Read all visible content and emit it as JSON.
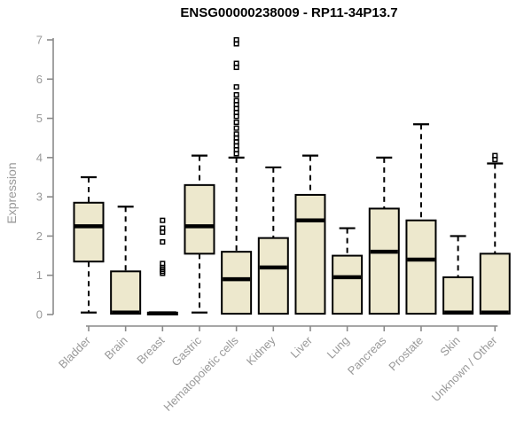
{
  "chart_data": {
    "type": "boxplot",
    "title": "ENSG00000238009 - RP11-34P13.7",
    "ylabel": "Expression",
    "xlabel": "",
    "ylim": [
      0,
      7
    ],
    "yticks": [
      0,
      1,
      2,
      3,
      4,
      5,
      6,
      7
    ],
    "grid": false,
    "legend": "none",
    "categories": [
      "Bladder",
      "Brain",
      "Breast",
      "Gastric",
      "Hematopoietic cells",
      "Kidney",
      "Liver",
      "Lung",
      "Pancreas",
      "Prostate",
      "Skin",
      "Unknown / Other"
    ],
    "series": [
      {
        "category": "Bladder",
        "whisker_low": 0.05,
        "q1": 1.35,
        "median": 2.25,
        "q3": 2.85,
        "whisker_high": 3.5,
        "outliers": []
      },
      {
        "category": "Brain",
        "whisker_low": 0,
        "q1": 0.02,
        "median": 0.05,
        "q3": 1.1,
        "whisker_high": 2.75,
        "outliers": []
      },
      {
        "category": "Breast",
        "whisker_low": 0,
        "q1": 0,
        "median": 0.03,
        "q3": 0.05,
        "whisker_high": 0.05,
        "outliers": [
          1.05,
          1.1,
          1.15,
          1.2,
          1.3,
          1.85,
          2.1,
          2.2,
          2.4
        ]
      },
      {
        "category": "Gastric",
        "whisker_low": 0.05,
        "q1": 1.55,
        "median": 2.25,
        "q3": 3.3,
        "whisker_high": 4.05,
        "outliers": []
      },
      {
        "category": "Hematopoietic cells",
        "whisker_low": 0,
        "q1": 0.02,
        "median": 0.9,
        "q3": 1.6,
        "whisker_high": 4.0,
        "outliers": [
          4.1,
          4.2,
          4.3,
          4.4,
          4.5,
          4.6,
          4.75,
          4.9,
          5.05,
          5.15,
          5.25,
          5.35,
          5.45,
          5.6,
          5.8,
          6.3,
          6.4,
          6.9,
          7.0
        ]
      },
      {
        "category": "Kidney",
        "whisker_low": 0,
        "q1": 0.02,
        "median": 1.2,
        "q3": 1.95,
        "whisker_high": 3.75,
        "outliers": []
      },
      {
        "category": "Liver",
        "whisker_low": 0,
        "q1": 0.02,
        "median": 2.4,
        "q3": 3.05,
        "whisker_high": 4.05,
        "outliers": []
      },
      {
        "category": "Lung",
        "whisker_low": 0,
        "q1": 0.02,
        "median": 0.95,
        "q3": 1.5,
        "whisker_high": 2.2,
        "outliers": []
      },
      {
        "category": "Pancreas",
        "whisker_low": 0,
        "q1": 0.02,
        "median": 1.6,
        "q3": 2.7,
        "whisker_high": 4.0,
        "outliers": []
      },
      {
        "category": "Prostate",
        "whisker_low": 0,
        "q1": 0.02,
        "median": 1.4,
        "q3": 2.4,
        "whisker_high": 4.85,
        "outliers": []
      },
      {
        "category": "Skin",
        "whisker_low": 0,
        "q1": 0.02,
        "median": 0.05,
        "q3": 0.95,
        "whisker_high": 2.0,
        "outliers": []
      },
      {
        "category": "Unknown / Other",
        "whisker_low": 0,
        "q1": 0.02,
        "median": 0.05,
        "q3": 1.55,
        "whisker_high": 3.85,
        "outliers": [
          3.95,
          4.05
        ]
      }
    ],
    "colors": {
      "box_fill": "#EDE8CD",
      "box_border": "#000000",
      "median": "#000000",
      "whisker": "#000000",
      "outlier": "#000000",
      "axis": "#8A8A8A",
      "tick_label": "#999999",
      "title": "#000000",
      "background": "#FFFFFF"
    }
  }
}
